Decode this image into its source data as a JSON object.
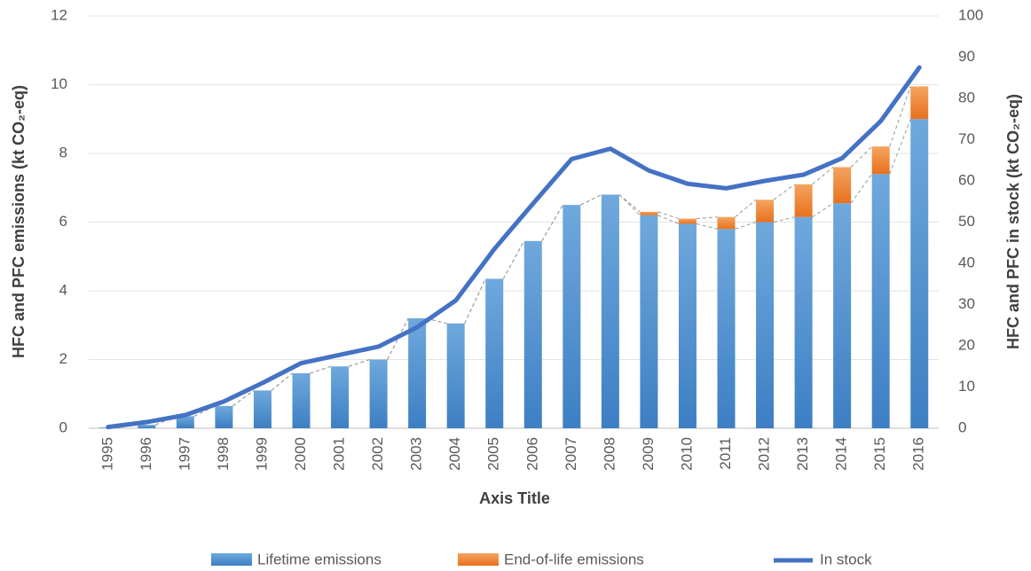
{
  "chart_data": {
    "type": "bar_line",
    "x_label": "Axis Title",
    "y_label": "HFC and PFC emissions (kt CO₂-eq)",
    "y2_label": "HFC and PFC in stock (kt CO₂-eq)",
    "categories": [
      "1995",
      "1996",
      "1997",
      "1998",
      "1999",
      "2000",
      "2001",
      "2002",
      "2003",
      "2004",
      "2005",
      "2006",
      "2007",
      "2008",
      "2009",
      "2010",
      "2011",
      "2012",
      "2013",
      "2014",
      "2015",
      "2016"
    ],
    "series": [
      {
        "name": "Lifetime emissions",
        "color": "#5b9bd5",
        "type": "bar",
        "values": [
          0.02,
          0.1,
          0.35,
          0.65,
          1.1,
          1.6,
          1.8,
          2.0,
          3.2,
          3.05,
          4.35,
          5.45,
          6.5,
          6.8,
          6.2,
          5.95,
          5.8,
          6.0,
          6.15,
          6.55,
          7.4,
          9.0
        ]
      },
      {
        "name": "End-of-life emissions",
        "color": "#ed7d31",
        "type": "bar",
        "values": [
          0,
          0,
          0,
          0,
          0,
          0,
          0,
          0,
          0,
          0,
          0,
          0,
          0,
          0,
          0.1,
          0.15,
          0.35,
          0.65,
          0.95,
          1.05,
          0.8,
          0.95
        ]
      },
      {
        "name": "In stock",
        "color": "#4472c4",
        "type": "line",
        "axis": "y2",
        "values": [
          0.3,
          1.5,
          3.2,
          6.5,
          11,
          15.8,
          17.8,
          19.8,
          24.5,
          31,
          43.5,
          54.5,
          65.3,
          67.8,
          62.5,
          59.3,
          58.2,
          60,
          61.5,
          65.5,
          74.5,
          87.5
        ]
      }
    ],
    "ylim": [
      0,
      12
    ],
    "yticks": [
      0,
      2,
      4,
      6,
      8,
      10,
      12
    ],
    "y2lim": [
      0,
      100
    ],
    "y2ticks": [
      0,
      10,
      20,
      30,
      40,
      50,
      60,
      70,
      80,
      90,
      100
    ],
    "grid": true,
    "legend": "bottom"
  }
}
